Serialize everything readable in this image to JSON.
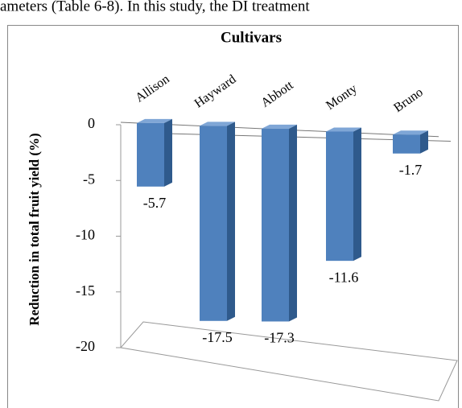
{
  "header_text": "ameters (Table 6-8). In this study, the DI treatment",
  "chart_data": {
    "type": "bar",
    "title": "Cultivars",
    "y_label": "Reduction in total fruit yield  (%)",
    "categories": [
      "Allison",
      "Hayward",
      "Abbott",
      "Monty",
      "Bruno"
    ],
    "values": [
      -5.7,
      -17.5,
      -17.3,
      -11.6,
      -1.7
    ],
    "color": "#4f81bd",
    "ylim": [
      -20,
      0
    ],
    "yticks": [
      0,
      -5,
      -10,
      -15,
      -20
    ]
  }
}
